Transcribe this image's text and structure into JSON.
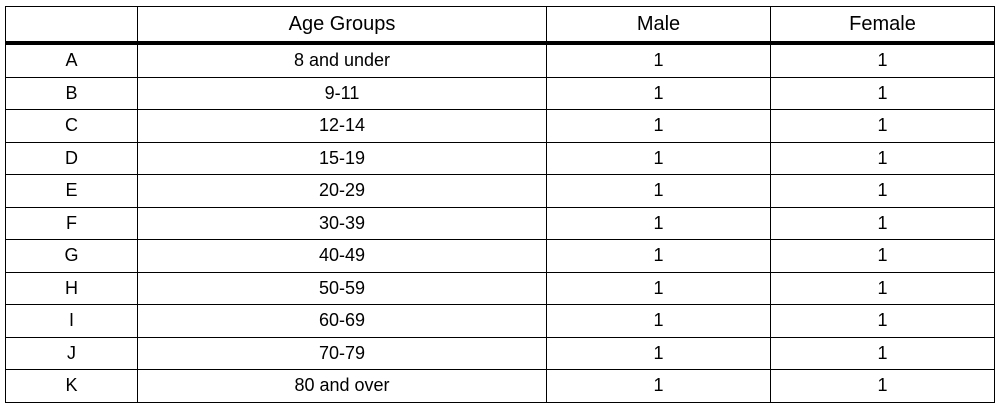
{
  "table": {
    "header": [
      "Age Groups",
      "Male",
      "Female"
    ],
    "rows": [
      [
        "A",
        "8 and under",
        1,
        1
      ],
      [
        "B",
        "9-11",
        1,
        1
      ],
      [
        "C",
        "12-14",
        1,
        1
      ],
      [
        "D",
        "15-19",
        1,
        1
      ],
      [
        "E",
        "20-29",
        1,
        1
      ],
      [
        "F",
        "30-39",
        1,
        1
      ],
      [
        "G",
        "40-49",
        1,
        1
      ],
      [
        "H",
        "50-59",
        1,
        1
      ],
      [
        "I",
        "60-69",
        1,
        1
      ],
      [
        "J",
        "70-79",
        1,
        1
      ],
      [
        "K",
        "80 and over",
        1,
        1
      ]
    ]
  }
}
